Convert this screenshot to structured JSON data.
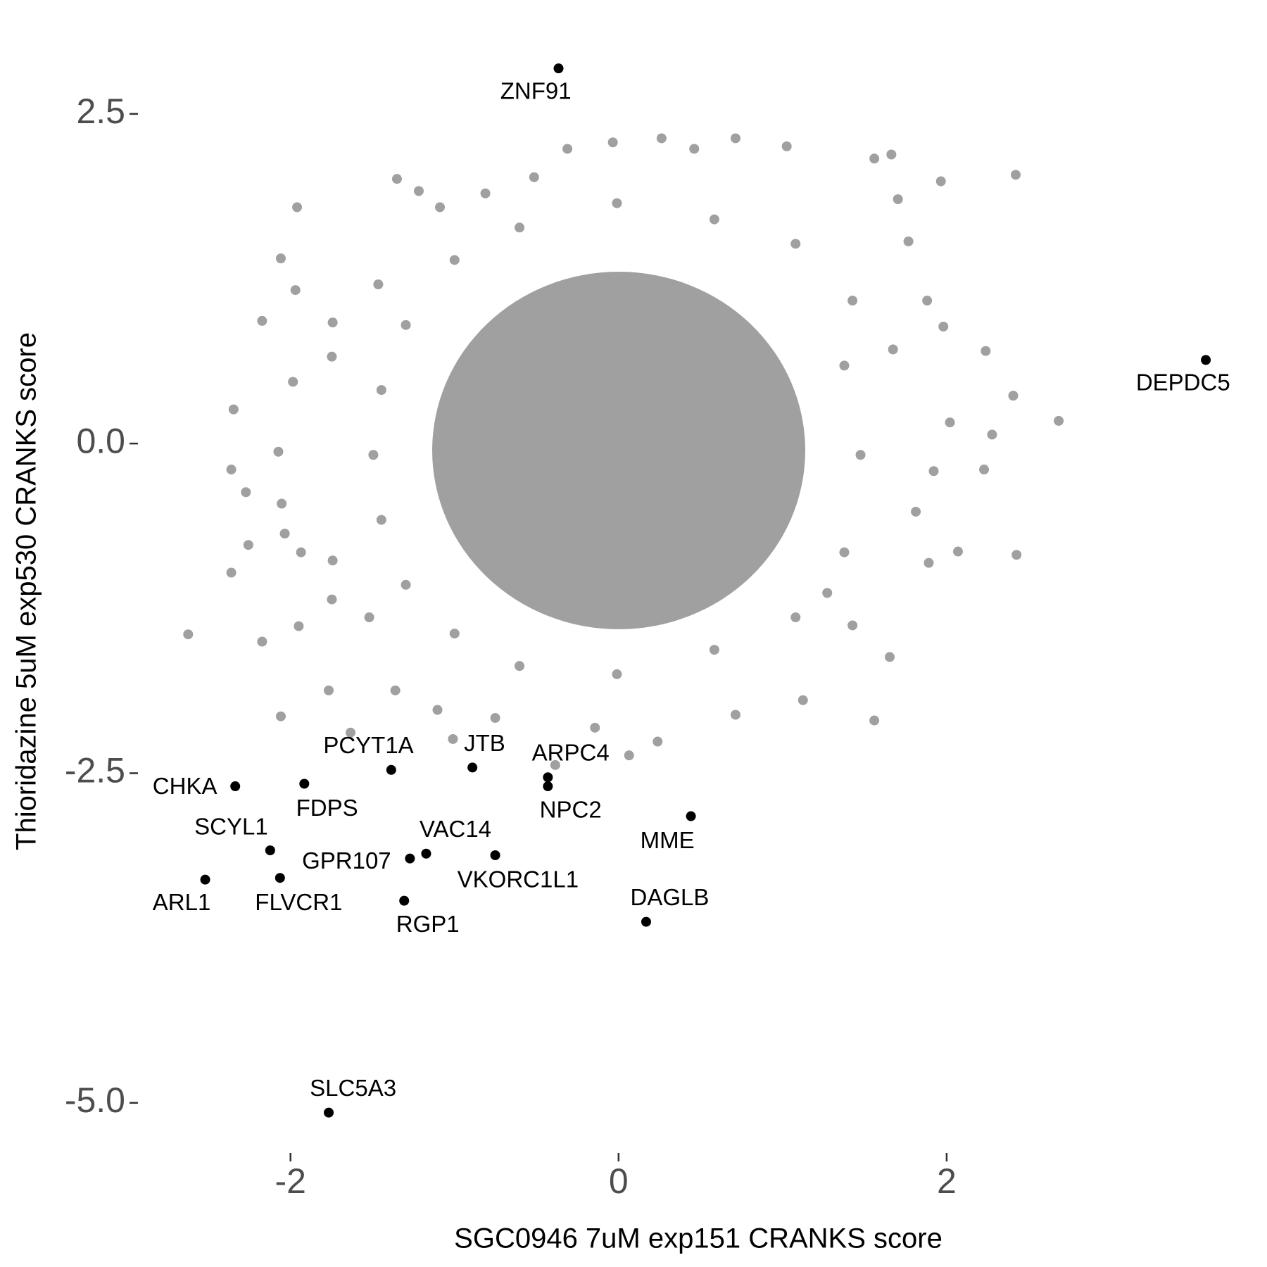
{
  "chart_data": {
    "type": "scatter",
    "x_label": "SGC0946 7uM exp151 CRANKS score",
    "y_label": "Thioridazine 5uM exp530 CRANKS score",
    "xlim": [
      -2.93,
      3.88
    ],
    "ylim": [
      -5.38,
      2.99
    ],
    "xticks": [
      -2,
      0,
      2
    ],
    "yticks": [
      {
        "value": 2.5,
        "label": "2.5"
      },
      {
        "value": 0,
        "label": "0.0"
      },
      {
        "value": -2.5,
        "label": "-2.5"
      },
      {
        "value": -5,
        "label": "-5.0"
      }
    ],
    "background_points": {
      "color": "#a0a0a0",
      "x": [
        2.683,
        2.406,
        2.426,
        2.421,
        1.965,
        1.663,
        1.559,
        0.713,
        0.262,
        -0.312,
        -1.351,
        -1.218,
        -1.96,
        -2.059,
        -2.173,
        -1.97,
        -2.347,
        -2.361,
        -2.272,
        -2.361,
        -2.624,
        -2.173,
        -2.059,
        -1.634,
        -1.767,
        -1.95,
        -2.257,
        -2.035,
        -1.743,
        -1.01,
        -1.104,
        -0.752,
        -0.386,
        0.064,
        0.238,
        -0.144,
        0.713,
        1.124,
        1.559,
        1.653,
        1.891,
        2.069,
        2.228,
        2.277,
        2.238,
        1.98,
        1.881,
        1.767,
        1.703,
        1.025,
        0.461,
        -0.035,
        -0.515,
        -0.812,
        -1.089,
        -1.465,
        -1.743,
        -1.748,
        -1.985,
        -2.074,
        -2.054,
        -1.936,
        -1.748,
        -1.52,
        -1.361,
        1.272,
        1.426,
        1.812,
        1.921,
        2.02,
        1.673,
        1.426,
        1.079,
        0.584,
        -0.01,
        -0.604,
        -1.0,
        -1.297,
        -1.446,
        -1.495,
        -1.446,
        -1.297,
        -1.0,
        -0.604,
        -0.01,
        0.584,
        1.079,
        1.376,
        1.475,
        1.376
      ],
      "y": [
        0.172,
        0.363,
        -0.844,
        2.038,
        1.989,
        2.192,
        2.161,
        2.315,
        2.315,
        2.235,
        2.007,
        1.915,
        1.792,
        1.404,
        0.93,
        1.164,
        0.259,
        -0.197,
        -0.369,
        -0.979,
        -1.447,
        -1.502,
        -2.069,
        -2.192,
        -1.872,
        -1.385,
        -0.769,
        -0.683,
        -0.887,
        -2.241,
        -2.02,
        -2.081,
        -2.438,
        -2.365,
        -2.26,
        -2.155,
        -2.057,
        -1.946,
        -2.1,
        -1.619,
        -0.905,
        -0.819,
        -0.197,
        0.068,
        0.702,
        0.887,
        1.084,
        1.533,
        1.853,
        2.254,
        2.235,
        2.284,
        2.02,
        1.897,
        1.792,
        1.207,
        0.918,
        0.659,
        0.468,
        -0.062,
        -0.456,
        -0.825,
        -1.182,
        -1.318,
        -1.872,
        -1.133,
        -1.379,
        -0.517,
        -0.209,
        0.16,
        0.714,
        1.084,
        1.515,
        1.7,
        1.823,
        1.638,
        1.392,
        0.899,
        0.406,
        -0.086,
        -0.579,
        -1.071,
        -1.441,
        -1.687,
        -1.749,
        -1.564,
        -1.318,
        -0.825,
        -0.086,
        0.591
      ]
    },
    "highlighted": {
      "color": "#000000",
      "labels": [
        "ZNF91",
        "DEPDC5",
        "CHKA",
        "FDPS",
        "PCYT1A",
        "JTB",
        "ARPC4",
        "NPC2",
        "MME",
        "SCYL1",
        "VAC14",
        "GPR107",
        "VKORC1L1",
        "ARL1",
        "FLVCR1",
        "RGP1",
        "DAGLB",
        "SLC5A3"
      ],
      "x": [
        -0.366,
        3.58,
        -2.337,
        -1.916,
        -1.386,
        -0.891,
        -0.431,
        -0.431,
        0.441,
        -2.124,
        -1.173,
        -1.272,
        -0.752,
        -2.52,
        -2.064,
        -1.307,
        0.168,
        -1.767
      ],
      "y": [
        2.845,
        0.634,
        -2.599,
        -2.58,
        -2.475,
        -2.457,
        -2.531,
        -2.599,
        -2.826,
        -3.085,
        -3.11,
        -3.147,
        -3.122,
        -3.307,
        -3.294,
        -3.467,
        -3.627,
        -5.074
      ]
    }
  }
}
